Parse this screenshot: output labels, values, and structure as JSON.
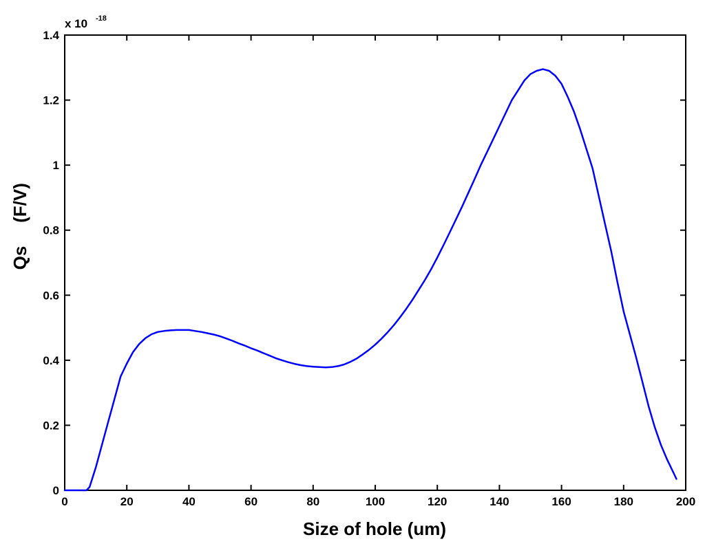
{
  "chart_data": {
    "type": "line",
    "title": "",
    "xlabel": "Size of hole (um)",
    "ylabel_main": "Qs",
    "ylabel_unit": "(F/V)",
    "y_multiplier": {
      "base": "x 10",
      "exponent": "-18"
    },
    "xlim": [
      0,
      200
    ],
    "ylim": [
      0,
      1.4
    ],
    "x_ticks": [
      0,
      20,
      40,
      60,
      80,
      100,
      120,
      140,
      160,
      180,
      200
    ],
    "x_tick_labels": [
      "0",
      "20",
      "40",
      "60",
      "80",
      "100",
      "120",
      "140",
      "160",
      "180",
      "200"
    ],
    "y_ticks": [
      0,
      0.2,
      0.4,
      0.6,
      0.8,
      1.0,
      1.2,
      1.4
    ],
    "y_tick_labels": [
      "0",
      "0.2",
      "0.4",
      "0.6",
      "0.8",
      "1",
      "1.2",
      "1.4"
    ],
    "grid": false,
    "line_color": "#0000ff",
    "series": [
      {
        "x": [
          0,
          2,
          4,
          6,
          7,
          8,
          9,
          10,
          12,
          14,
          16,
          18,
          20,
          22,
          24,
          26,
          28,
          30,
          32,
          34,
          36,
          38,
          40,
          42,
          44,
          46,
          48,
          50,
          52,
          54,
          56,
          58,
          60,
          62,
          64,
          66,
          68,
          70,
          72,
          74,
          76,
          78,
          80,
          82,
          84,
          86,
          88,
          90,
          92,
          94,
          96,
          98,
          100,
          102,
          104,
          106,
          108,
          110,
          112,
          114,
          116,
          118,
          120,
          122,
          124,
          126,
          128,
          130,
          132,
          134,
          136,
          138,
          140,
          142,
          144,
          146,
          148,
          150,
          152,
          154,
          156,
          158,
          160,
          162,
          164,
          166,
          168,
          170,
          172,
          174,
          176,
          178,
          180,
          182,
          184,
          186,
          188,
          190,
          192,
          194,
          196,
          197
        ],
        "y": [
          0.0,
          0.0,
          0.0,
          0.0,
          0.0,
          0.01,
          0.04,
          0.07,
          0.14,
          0.21,
          0.28,
          0.35,
          0.39,
          0.425,
          0.45,
          0.468,
          0.48,
          0.487,
          0.49,
          0.492,
          0.493,
          0.493,
          0.493,
          0.49,
          0.487,
          0.483,
          0.479,
          0.474,
          0.467,
          0.46,
          0.452,
          0.445,
          0.437,
          0.43,
          0.422,
          0.414,
          0.406,
          0.4,
          0.394,
          0.389,
          0.385,
          0.382,
          0.38,
          0.379,
          0.378,
          0.379,
          0.382,
          0.387,
          0.395,
          0.405,
          0.418,
          0.432,
          0.448,
          0.466,
          0.486,
          0.508,
          0.532,
          0.558,
          0.586,
          0.616,
          0.647,
          0.68,
          0.716,
          0.754,
          0.793,
          0.833,
          0.873,
          0.915,
          0.957,
          1.0,
          1.04,
          1.08,
          1.12,
          1.16,
          1.2,
          1.23,
          1.26,
          1.28,
          1.29,
          1.295,
          1.29,
          1.275,
          1.25,
          1.21,
          1.165,
          1.11,
          1.05,
          0.99,
          0.905,
          0.82,
          0.735,
          0.64,
          0.55,
          0.48,
          0.41,
          0.335,
          0.26,
          0.195,
          0.14,
          0.095,
          0.055,
          0.035
        ]
      }
    ]
  }
}
